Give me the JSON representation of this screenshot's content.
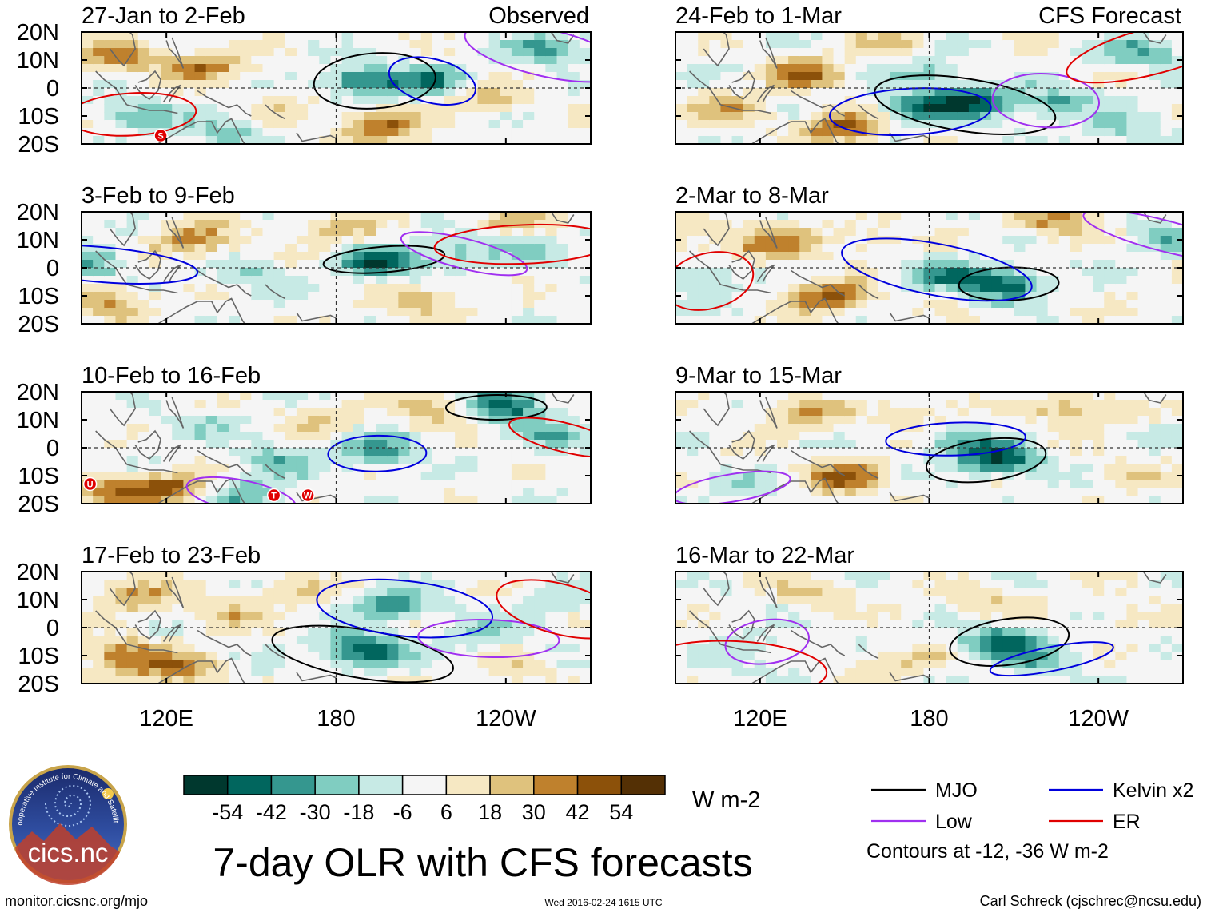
{
  "chart_data": {
    "type": "heatmap",
    "title": "7-day OLR with CFS forecasts",
    "units": "W m-2",
    "source_url": "monitor.cicsnc.org/mjo",
    "timestamp": "Wed 2016-02-24 1615 UTC",
    "author": "Carl Schreck (cjschrec@ncsu.edu)",
    "logo_text": "cics.nc",
    "logo_ring_text": "Cooperative Institute for Climate and Satellites",
    "column_headers": {
      "observed": "Observed",
      "forecast": "CFS Forecast"
    },
    "lat_ticks": [
      "20N",
      "10N",
      "0",
      "10S",
      "20S"
    ],
    "lat_values": [
      20,
      10,
      0,
      -10,
      -20
    ],
    "lon_ticks": [
      "120E",
      "180",
      "120W"
    ],
    "lon_values": [
      120,
      180,
      240
    ],
    "lon_range": [
      90,
      270
    ],
    "lat_range": [
      -20,
      20
    ],
    "colorbar": {
      "labels": [
        "-54",
        "-42",
        "-30",
        "-18",
        "-6",
        "6",
        "18",
        "30",
        "42",
        "54"
      ],
      "colors": [
        "#00382e",
        "#01665e",
        "#35978f",
        "#80cdc1",
        "#c7eae5",
        "#f5f5f5",
        "#f6e8c3",
        "#dfc27d",
        "#bf812d",
        "#8c510a",
        "#543005"
      ]
    },
    "contour_legend": {
      "items": [
        {
          "name": "MJO",
          "color": "#000000"
        },
        {
          "name": "Kelvin x2",
          "color": "#0000dd"
        },
        {
          "name": "Low",
          "color": "#a030f0"
        },
        {
          "name": "ER",
          "color": "#e00000"
        }
      ],
      "note": "Contours at -12, -36 W m-2"
    },
    "panels": [
      {
        "period": "27-Jan to 2-Feb",
        "column": "observed",
        "row": 0,
        "seed": 11,
        "anomalies": [
          {
            "lon": 190,
            "lat": 2,
            "v": -48
          },
          {
            "lon": 215,
            "lat": 3,
            "v": -36
          },
          {
            "lon": 133,
            "lat": 8,
            "v": 38
          },
          {
            "lon": 103,
            "lat": 11,
            "v": 30
          },
          {
            "lon": 195,
            "lat": -14,
            "v": 45
          },
          {
            "lon": 232,
            "lat": -4,
            "v": 24
          },
          {
            "lon": 256,
            "lat": 14,
            "v": -36
          },
          {
            "lon": 110,
            "lat": -10,
            "v": -32
          },
          {
            "lon": 142,
            "lat": -16,
            "v": -24
          },
          {
            "lon": 162,
            "lat": -6,
            "v": 12
          }
        ],
        "markers": [
          {
            "lon": 118,
            "lat": -17,
            "label": "S"
          }
        ]
      },
      {
        "period": "3-Feb to 9-Feb",
        "column": "observed",
        "row": 1,
        "seed": 23,
        "anomalies": [
          {
            "lon": 195,
            "lat": 2,
            "v": -50
          },
          {
            "lon": 225,
            "lat": 5,
            "v": -26
          },
          {
            "lon": 248,
            "lat": 8,
            "v": -18
          },
          {
            "lon": 130,
            "lat": 10,
            "v": 36
          },
          {
            "lon": 100,
            "lat": -12,
            "v": 34
          },
          {
            "lon": 180,
            "lat": 14,
            "v": 20
          },
          {
            "lon": 210,
            "lat": -12,
            "v": 30
          },
          {
            "lon": 240,
            "lat": 17,
            "v": 22
          },
          {
            "lon": 93,
            "lat": 2,
            "v": -30
          },
          {
            "lon": 150,
            "lat": -3,
            "v": -16
          }
        ],
        "markers": []
      },
      {
        "period": "10-Feb to 16-Feb",
        "column": "observed",
        "row": 2,
        "seed": 37,
        "anomalies": [
          {
            "lon": 195,
            "lat": -1,
            "v": -40
          },
          {
            "lon": 240,
            "lat": 15,
            "v": -52
          },
          {
            "lon": 160,
            "lat": -4,
            "v": -22
          },
          {
            "lon": 120,
            "lat": -14,
            "v": 42
          },
          {
            "lon": 100,
            "lat": -16,
            "v": 32
          },
          {
            "lon": 215,
            "lat": 14,
            "v": 30
          },
          {
            "lon": 175,
            "lat": 10,
            "v": 20
          },
          {
            "lon": 260,
            "lat": 4,
            "v": -24
          },
          {
            "lon": 130,
            "lat": 8,
            "v": -14
          },
          {
            "lon": 150,
            "lat": -16,
            "v": -28
          }
        ],
        "markers": [
          {
            "lon": 93,
            "lat": -13,
            "label": "U"
          },
          {
            "lon": 158,
            "lat": -17,
            "label": "T"
          },
          {
            "lon": 170,
            "lat": -17,
            "label": "W"
          }
        ]
      },
      {
        "period": "17-Feb to 23-Feb",
        "column": "observed",
        "row": 3,
        "seed": 41,
        "anomalies": [
          {
            "lon": 190,
            "lat": -8,
            "v": -54
          },
          {
            "lon": 200,
            "lat": 8,
            "v": -36
          },
          {
            "lon": 105,
            "lat": -10,
            "v": 44
          },
          {
            "lon": 125,
            "lat": -15,
            "v": 36
          },
          {
            "lon": 108,
            "lat": 12,
            "v": 30
          },
          {
            "lon": 140,
            "lat": 5,
            "v": 24
          },
          {
            "lon": 230,
            "lat": -3,
            "v": -18
          },
          {
            "lon": 255,
            "lat": 8,
            "v": -14
          },
          {
            "lon": 165,
            "lat": 14,
            "v": 18
          },
          {
            "lon": 245,
            "lat": -14,
            "v": 14
          }
        ],
        "markers": []
      },
      {
        "period": "24-Feb to 1-Mar",
        "column": "forecast",
        "row": 0,
        "seed": 53,
        "anomalies": [
          {
            "lon": 195,
            "lat": -5,
            "v": -54
          },
          {
            "lon": 175,
            "lat": -7,
            "v": -40
          },
          {
            "lon": 225,
            "lat": -5,
            "v": -32
          },
          {
            "lon": 135,
            "lat": 5,
            "v": 40
          },
          {
            "lon": 150,
            "lat": -14,
            "v": 44
          },
          {
            "lon": 110,
            "lat": -8,
            "v": 26
          },
          {
            "lon": 165,
            "lat": 16,
            "v": 18
          },
          {
            "lon": 255,
            "lat": 12,
            "v": -30
          },
          {
            "lon": 180,
            "lat": 6,
            "v": -24
          },
          {
            "lon": 250,
            "lat": -15,
            "v": -20
          }
        ],
        "markers": []
      },
      {
        "period": "2-Mar to 8-Mar",
        "column": "forecast",
        "row": 1,
        "seed": 61,
        "anomalies": [
          {
            "lon": 205,
            "lat": -6,
            "v": -54
          },
          {
            "lon": 185,
            "lat": -2,
            "v": -30
          },
          {
            "lon": 145,
            "lat": -10,
            "v": 48
          },
          {
            "lon": 125,
            "lat": 8,
            "v": 38
          },
          {
            "lon": 160,
            "lat": 10,
            "v": 18
          },
          {
            "lon": 225,
            "lat": 16,
            "v": 34
          },
          {
            "lon": 100,
            "lat": -4,
            "v": -22
          },
          {
            "lon": 262,
            "lat": 10,
            "v": -24
          },
          {
            "lon": 100,
            "lat": 12,
            "v": 20
          }
        ],
        "markers": []
      },
      {
        "period": "9-Mar to 15-Mar",
        "column": "forecast",
        "row": 2,
        "seed": 71,
        "anomalies": [
          {
            "lon": 205,
            "lat": -4,
            "v": -54
          },
          {
            "lon": 190,
            "lat": 2,
            "v": -26
          },
          {
            "lon": 150,
            "lat": -10,
            "v": 42
          },
          {
            "lon": 135,
            "lat": 12,
            "v": 30
          },
          {
            "lon": 230,
            "lat": 14,
            "v": 32
          },
          {
            "lon": 175,
            "lat": 12,
            "v": 16
          },
          {
            "lon": 110,
            "lat": -14,
            "v": -14
          },
          {
            "lon": 250,
            "lat": -10,
            "v": 12
          }
        ],
        "markers": []
      },
      {
        "period": "16-Mar to 22-Mar",
        "column": "forecast",
        "row": 3,
        "seed": 83,
        "anomalies": [
          {
            "lon": 205,
            "lat": -5,
            "v": -46
          },
          {
            "lon": 220,
            "lat": -12,
            "v": -24
          },
          {
            "lon": 140,
            "lat": 12,
            "v": 20
          },
          {
            "lon": 170,
            "lat": -12,
            "v": 22
          },
          {
            "lon": 200,
            "lat": 10,
            "v": 16
          },
          {
            "lon": 120,
            "lat": -6,
            "v": -12
          },
          {
            "lon": 110,
            "lat": -14,
            "v": -10
          },
          {
            "lon": 250,
            "lat": 4,
            "v": 12
          }
        ],
        "markers": []
      }
    ]
  }
}
